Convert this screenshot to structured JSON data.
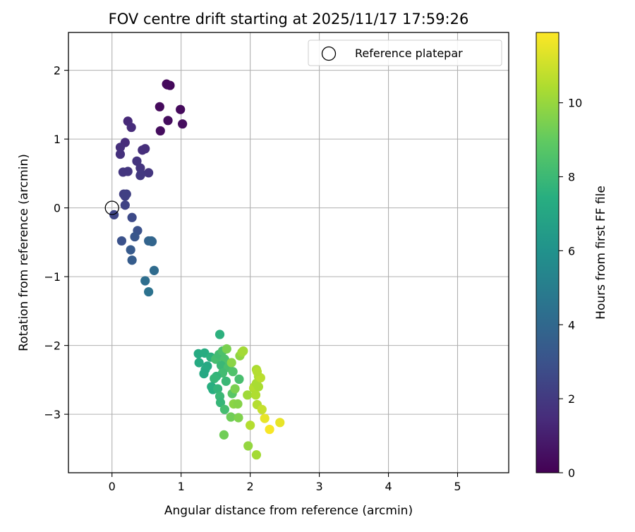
{
  "chart_data": {
    "type": "scatter",
    "title": "FOV centre drift starting at 2025/11/17 17:59:26",
    "xlabel": "Angular distance from reference (arcmin)",
    "ylabel": "Rotation from reference (arcmin)",
    "xlim": [
      -0.63,
      5.74
    ],
    "ylim": [
      -3.85,
      2.55
    ],
    "xticks": [
      0,
      1,
      2,
      3,
      4,
      5
    ],
    "yticks": [
      -3,
      -2,
      -1,
      0,
      1,
      2
    ],
    "xtick_labels": [
      "0",
      "1",
      "2",
      "3",
      "4",
      "5"
    ],
    "ytick_labels": [
      "−3",
      "−2",
      "−1",
      "0",
      "1",
      "2"
    ],
    "grid": true,
    "legend": {
      "placement": "top-right",
      "entries": [
        {
          "label": "Reference platepar",
          "marker": "open-circle"
        }
      ]
    },
    "reference_point": {
      "x": 0,
      "y": 0
    },
    "colorbar": {
      "label": "Hours from first FF file",
      "range": [
        0,
        11.9
      ],
      "ticks": [
        0,
        2,
        4,
        6,
        8,
        10
      ],
      "tick_labels": [
        "0",
        "2",
        "4",
        "6",
        "8",
        "10"
      ],
      "colormap": "viridis"
    },
    "points": [
      {
        "x": 0.79,
        "y": 1.8,
        "c": 0.2
      },
      {
        "x": 0.84,
        "y": 1.78,
        "c": 0.2
      },
      {
        "x": 0.8,
        "y": 1.79,
        "c": 0.3
      },
      {
        "x": 0.69,
        "y": 1.47,
        "c": 0.3
      },
      {
        "x": 0.99,
        "y": 1.43,
        "c": 0.3
      },
      {
        "x": 0.81,
        "y": 1.27,
        "c": 0.4
      },
      {
        "x": 1.02,
        "y": 1.22,
        "c": 0.4
      },
      {
        "x": 0.7,
        "y": 1.12,
        "c": 0.4
      },
      {
        "x": 0.23,
        "y": 1.26,
        "c": 1.4
      },
      {
        "x": 0.28,
        "y": 1.17,
        "c": 1.5
      },
      {
        "x": 0.19,
        "y": 0.95,
        "c": 1.5
      },
      {
        "x": 0.12,
        "y": 0.88,
        "c": 1.6
      },
      {
        "x": 0.48,
        "y": 0.86,
        "c": 1.6
      },
      {
        "x": 0.44,
        "y": 0.84,
        "c": 1.6
      },
      {
        "x": 0.12,
        "y": 0.78,
        "c": 1.7
      },
      {
        "x": 0.36,
        "y": 0.68,
        "c": 1.8
      },
      {
        "x": 0.41,
        "y": 0.58,
        "c": 1.8
      },
      {
        "x": 0.16,
        "y": 0.52,
        "c": 1.9
      },
      {
        "x": 0.23,
        "y": 0.53,
        "c": 1.9
      },
      {
        "x": 0.53,
        "y": 0.51,
        "c": 1.9
      },
      {
        "x": 0.42,
        "y": 0.49,
        "c": 2.0
      },
      {
        "x": 0.41,
        "y": 0.47,
        "c": 2.0
      },
      {
        "x": 0.17,
        "y": 0.2,
        "c": 2.2
      },
      {
        "x": 0.21,
        "y": 0.2,
        "c": 2.3
      },
      {
        "x": 0.19,
        "y": 0.17,
        "c": 2.3
      },
      {
        "x": 0.19,
        "y": 0.04,
        "c": 2.4
      },
      {
        "x": 0.03,
        "y": -0.1,
        "c": 2.5
      },
      {
        "x": 0.29,
        "y": -0.14,
        "c": 2.7
      },
      {
        "x": 0.37,
        "y": -0.33,
        "c": 3.0
      },
      {
        "x": 0.33,
        "y": -0.42,
        "c": 3.2
      },
      {
        "x": 0.14,
        "y": -0.48,
        "c": 3.0
      },
      {
        "x": 0.53,
        "y": -0.48,
        "c": 3.8
      },
      {
        "x": 0.57,
        "y": -0.48,
        "c": 3.9
      },
      {
        "x": 0.58,
        "y": -0.49,
        "c": 3.9
      },
      {
        "x": 0.27,
        "y": -0.61,
        "c": 3.4
      },
      {
        "x": 0.29,
        "y": -0.76,
        "c": 3.5
      },
      {
        "x": 0.61,
        "y": -0.91,
        "c": 4.2
      },
      {
        "x": 0.48,
        "y": -1.06,
        "c": 4.3
      },
      {
        "x": 0.53,
        "y": -1.22,
        "c": 4.5
      },
      {
        "x": 1.56,
        "y": -1.84,
        "c": 7.6
      },
      {
        "x": 1.25,
        "y": -2.12,
        "c": 7.3
      },
      {
        "x": 1.34,
        "y": -2.11,
        "c": 7.4
      },
      {
        "x": 1.43,
        "y": -2.17,
        "c": 7.6
      },
      {
        "x": 1.26,
        "y": -2.25,
        "c": 7.3
      },
      {
        "x": 1.38,
        "y": -2.3,
        "c": 7.2
      },
      {
        "x": 1.35,
        "y": -2.35,
        "c": 7.3
      },
      {
        "x": 1.33,
        "y": -2.41,
        "c": 7.2
      },
      {
        "x": 1.5,
        "y": -2.2,
        "c": 8.3
      },
      {
        "x": 1.55,
        "y": -2.13,
        "c": 8.2
      },
      {
        "x": 1.6,
        "y": -2.08,
        "c": 8.5
      },
      {
        "x": 1.66,
        "y": -2.05,
        "c": 9.5
      },
      {
        "x": 1.63,
        "y": -2.2,
        "c": 8.5
      },
      {
        "x": 1.58,
        "y": -2.29,
        "c": 8.0
      },
      {
        "x": 1.68,
        "y": -2.32,
        "c": 8.4
      },
      {
        "x": 1.73,
        "y": -2.25,
        "c": 9.8
      },
      {
        "x": 1.75,
        "y": -2.38,
        "c": 8.6
      },
      {
        "x": 1.6,
        "y": -2.4,
        "c": 8.2
      },
      {
        "x": 1.51,
        "y": -2.45,
        "c": 7.8
      },
      {
        "x": 1.48,
        "y": -2.48,
        "c": 7.9
      },
      {
        "x": 1.65,
        "y": -2.52,
        "c": 8.0
      },
      {
        "x": 1.84,
        "y": -2.49,
        "c": 8.4
      },
      {
        "x": 1.44,
        "y": -2.6,
        "c": 7.5
      },
      {
        "x": 1.46,
        "y": -2.64,
        "c": 7.5
      },
      {
        "x": 1.53,
        "y": -2.63,
        "c": 7.8
      },
      {
        "x": 1.56,
        "y": -2.74,
        "c": 8.0
      },
      {
        "x": 1.57,
        "y": -2.83,
        "c": 7.9
      },
      {
        "x": 1.63,
        "y": -2.93,
        "c": 8.3
      },
      {
        "x": 1.74,
        "y": -2.7,
        "c": 8.8
      },
      {
        "x": 1.78,
        "y": -2.63,
        "c": 9.5
      },
      {
        "x": 1.76,
        "y": -2.85,
        "c": 9.8
      },
      {
        "x": 1.82,
        "y": -2.85,
        "c": 9.7
      },
      {
        "x": 1.72,
        "y": -3.04,
        "c": 9.3
      },
      {
        "x": 1.83,
        "y": -3.05,
        "c": 9.6
      },
      {
        "x": 1.85,
        "y": -2.15,
        "c": 9.9
      },
      {
        "x": 1.88,
        "y": -2.1,
        "c": 10.2
      },
      {
        "x": 1.9,
        "y": -2.08,
        "c": 10.3
      },
      {
        "x": 1.96,
        "y": -2.72,
        "c": 10.2
      },
      {
        "x": 2.05,
        "y": -2.62,
        "c": 10.5
      },
      {
        "x": 2.06,
        "y": -2.6,
        "c": 10.6
      },
      {
        "x": 2.09,
        "y": -2.55,
        "c": 10.4
      },
      {
        "x": 2.12,
        "y": -2.6,
        "c": 10.4
      },
      {
        "x": 2.08,
        "y": -2.72,
        "c": 10.5
      },
      {
        "x": 2.12,
        "y": -2.45,
        "c": 10.5
      },
      {
        "x": 2.15,
        "y": -2.47,
        "c": 10.7
      },
      {
        "x": 2.09,
        "y": -2.35,
        "c": 10.4
      },
      {
        "x": 2.1,
        "y": -2.38,
        "c": 10.6
      },
      {
        "x": 2.1,
        "y": -2.86,
        "c": 10.6
      },
      {
        "x": 2.17,
        "y": -2.93,
        "c": 10.9
      },
      {
        "x": 2.0,
        "y": -3.16,
        "c": 10.6
      },
      {
        "x": 2.21,
        "y": -3.06,
        "c": 11.5
      },
      {
        "x": 2.28,
        "y": -3.22,
        "c": 11.8
      },
      {
        "x": 2.43,
        "y": -3.12,
        "c": 11.5
      },
      {
        "x": 1.62,
        "y": -3.3,
        "c": 9.3
      },
      {
        "x": 1.97,
        "y": -3.46,
        "c": 10.0
      },
      {
        "x": 2.09,
        "y": -3.59,
        "c": 10.3
      }
    ]
  }
}
